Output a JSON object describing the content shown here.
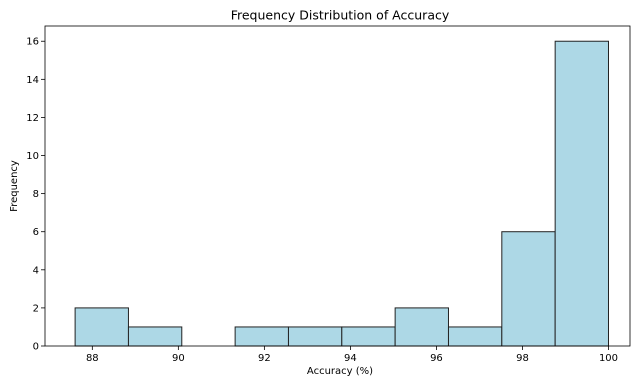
{
  "chart_data": {
    "type": "bar",
    "title": "Frequency Distribution of Accuracy",
    "xlabel": "Accuracy (%)",
    "ylabel": "Frequency",
    "bin_edges": [
      87.6,
      88.84,
      90.08,
      91.32,
      92.56,
      93.8,
      95.04,
      96.28,
      97.52,
      98.76,
      100.0
    ],
    "values": [
      2,
      1,
      0,
      1,
      1,
      1,
      2,
      1,
      6,
      16
    ],
    "xlim": [
      86.9,
      100.5
    ],
    "ylim": [
      0,
      16.8
    ],
    "xticks": [
      88,
      90,
      92,
      94,
      96,
      98,
      100
    ],
    "yticks": [
      0,
      2,
      4,
      6,
      8,
      10,
      12,
      14,
      16
    ],
    "bar_color": "#add8e6",
    "edge_color": "#222222",
    "grid": false,
    "legend": "none"
  }
}
